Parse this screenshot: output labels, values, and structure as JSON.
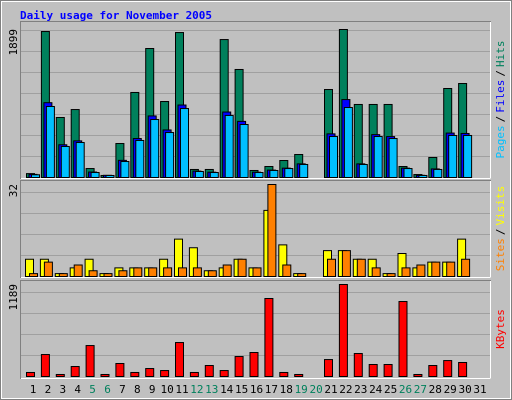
{
  "chart_data": [
    {
      "type": "bar",
      "title": "Daily usage for November 2005",
      "separator": "/",
      "ylim": [
        0,
        1899
      ],
      "yticks": [
        1899
      ],
      "series": [
        {
          "name": "Hits",
          "color": "#00805c",
          "values": [
            50,
            1873,
            770,
            872,
            115,
            26,
            436,
            1091,
            1655,
            975,
            1860,
            103,
            103,
            1770,
            1386,
            90,
            141,
            218,
            295,
            0,
            1129,
            1899,
            937,
            937,
            937,
            141,
            38,
            257,
            1142,
            1206,
            0
          ]
        },
        {
          "name": "Files",
          "color": "#0000ff",
          "values": [
            40,
            960,
            420,
            470,
            70,
            28,
            220,
            500,
            790,
            610,
            930,
            82,
            68,
            840,
            720,
            68,
            95,
            120,
            175,
            0,
            560,
            1000,
            175,
            550,
            525,
            120,
            28,
            110,
            570,
            565,
            0
          ]
        },
        {
          "name": "Pages",
          "color": "#00c0ff",
          "values": [
            35,
            911,
            398,
            449,
            64,
            26,
            205,
            475,
            744,
            577,
            885,
            77,
            64,
            796,
            680,
            64,
            90,
            115,
            167,
            0,
            526,
            898,
            167,
            526,
            500,
            115,
            26,
            103,
            539,
            539,
            0
          ]
        }
      ]
    },
    {
      "type": "bar",
      "separator": "/",
      "ylim": [
        0,
        32
      ],
      "yticks": [
        32
      ],
      "series": [
        {
          "name": "Visits",
          "color": "#ffff00",
          "values": [
            6,
            6,
            1,
            3,
            6,
            1,
            3,
            3,
            3,
            6,
            13,
            10,
            2,
            3,
            6,
            3,
            23,
            11,
            1,
            0,
            9,
            9,
            6,
            6,
            1,
            8,
            3,
            5,
            5,
            13,
            0
          ]
        },
        {
          "name": "Sites",
          "color": "#ff8000",
          "values": [
            1,
            5,
            1,
            4,
            2,
            1,
            2,
            3,
            3,
            3,
            3,
            3,
            2,
            4,
            6,
            3,
            32,
            4,
            1,
            0,
            6,
            9,
            6,
            3,
            1,
            3,
            4,
            5,
            5,
            6,
            0
          ]
        }
      ]
    },
    {
      "type": "bar",
      "ylim": [
        0,
        1189
      ],
      "yticks": [
        1189
      ],
      "categories": [
        "1",
        "2",
        "3",
        "4",
        "5",
        "6",
        "7",
        "8",
        "9",
        "10",
        "11",
        "12",
        "13",
        "14",
        "15",
        "16",
        "17",
        "18",
        "19",
        "20",
        "21",
        "22",
        "23",
        "24",
        "25",
        "26",
        "27",
        "28",
        "29",
        "30",
        "31"
      ],
      "category_colors": [
        "#000000",
        "#000000",
        "#000000",
        "#000000",
        "#00805c",
        "#00805c",
        "#000000",
        "#000000",
        "#000000",
        "#000000",
        "#000000",
        "#00805c",
        "#00805c",
        "#000000",
        "#000000",
        "#000000",
        "#000000",
        "#000000",
        "#00805c",
        "#00805c",
        "#000000",
        "#000000",
        "#000000",
        "#000000",
        "#000000",
        "#00805c",
        "#00805c",
        "#000000",
        "#000000",
        "#000000",
        "#000000"
      ],
      "series": [
        {
          "name": "KBytes",
          "color": "#ff0000",
          "values": [
            52,
            284,
            26,
            129,
            400,
            26,
            168,
            52,
            103,
            77,
            439,
            52,
            142,
            77,
            258,
            310,
            1008,
            52,
            26,
            0,
            219,
            1189,
            297,
            155,
            155,
            969,
            26,
            142,
            206,
            181,
            0
          ]
        }
      ]
    }
  ]
}
